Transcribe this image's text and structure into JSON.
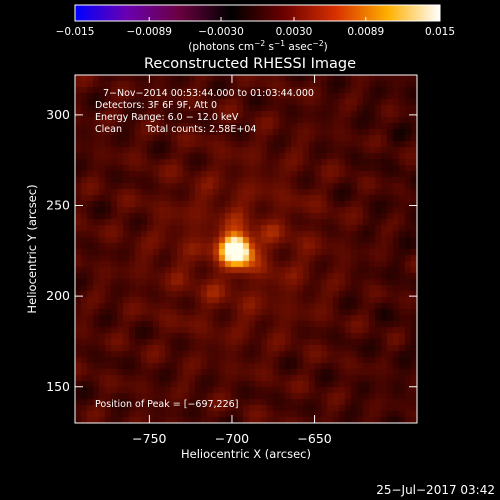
{
  "chart_data": {
    "type": "heatmap",
    "title": "Reconstructed RHESSI Image",
    "xlabel": "Heliocentric X (arcsec)",
    "ylabel": "Heliocentric Y (arcsec)",
    "xlim": [
      -795,
      -588
    ],
    "ylim": [
      130,
      322
    ],
    "x_ticks": [
      {
        "value": -750,
        "label": "−750"
      },
      {
        "value": -700,
        "label": "−700"
      },
      {
        "value": -650,
        "label": "−650"
      }
    ],
    "y_ticks": [
      {
        "value": 150,
        "label": "150"
      },
      {
        "value": 200,
        "label": "200"
      },
      {
        "value": 250,
        "label": "250"
      },
      {
        "value": 300,
        "label": "300"
      }
    ],
    "peak": {
      "x": -697,
      "y": 226
    },
    "colorbar": {
      "range": [
        -0.015,
        0.015
      ],
      "ticks": [
        {
          "value": -0.015,
          "label": "−0.015"
        },
        {
          "value": -0.0089,
          "label": "−0.0089"
        },
        {
          "value": -0.003,
          "label": "−0.0030"
        },
        {
          "value": 0.003,
          "label": "0.0030"
        },
        {
          "value": 0.0089,
          "label": "0.0089"
        },
        {
          "value": 0.015,
          "label": "0.015"
        }
      ],
      "units_prefix": "(photons cm",
      "units_exp1": "−2",
      "units_mid": " s",
      "units_exp2": "−1",
      "units_mid2": " asec",
      "units_exp3": "−2",
      "units_suffix": ")",
      "colors": [
        "#0000ff",
        "#6a00b0",
        "#6a0040",
        "#000000",
        "#6a0000",
        "#d83000",
        "#ffb000",
        "#ffffff"
      ]
    },
    "annotations": {
      "time_range": "7−Nov−2014 00:53:44.000 to 01:03:44.000",
      "detectors": "Detectors: 3F 6F 9F, Att 0",
      "energy": "Energy Range: 6.0 − 12.0 keV",
      "algorithm": "Clean",
      "counts": "Total counts: 2.58E+04",
      "peak_text": "Position of Peak = [−697,226]"
    }
  },
  "footer": {
    "timestamp": "25−Jul−2017 03:42"
  }
}
